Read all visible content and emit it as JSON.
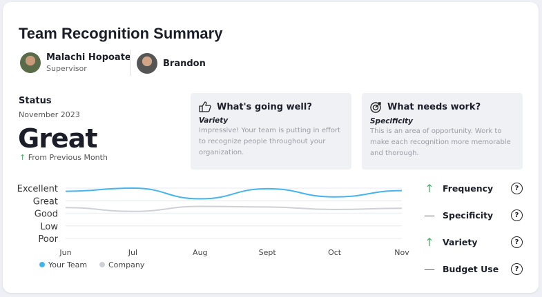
{
  "title": "Team Recognition Summary",
  "people": [
    {
      "name": "Malachi Hopoate",
      "role": "Supervisor"
    },
    {
      "name": "Brandon"
    }
  ],
  "status": {
    "label": "Status",
    "month": "November 2023",
    "value": "Great",
    "change_icon": "arrow-up",
    "change": "From Previous Month"
  },
  "going_well": {
    "title": "What's going well?",
    "icon": "thumbs-up",
    "subtitle": "Variety",
    "text": "Impressive! Your team is putting in effort to recognize people throughout your organization."
  },
  "needs_work": {
    "title": "What needs work?",
    "icon": "target",
    "subtitle": "Specificity",
    "text": "This is an area of opportunity. Work to make each recognition more memorable and thorough."
  },
  "chart_data": {
    "type": "line",
    "categories": [
      "Jun",
      "Jul",
      "Aug",
      "Sept",
      "Oct",
      "Nov"
    ],
    "y_levels": [
      "Poor",
      "Low",
      "Good",
      "Great",
      "Excellent"
    ],
    "ylim": [
      0,
      4
    ],
    "series": [
      {
        "name": "Your Team",
        "color": "#44b4ef",
        "values": [
          3.75,
          4.0,
          3.15,
          3.95,
          3.3,
          3.8
        ]
      },
      {
        "name": "Company",
        "color": "#cfd0d6",
        "values": [
          2.45,
          2.15,
          2.55,
          2.5,
          2.3,
          2.4
        ]
      }
    ],
    "legend": "bottom-left"
  },
  "metrics": [
    {
      "label": "Frequency",
      "trend": "up"
    },
    {
      "label": "Specificity",
      "trend": "flat"
    },
    {
      "label": "Variety",
      "trend": "up"
    },
    {
      "label": "Budget Use",
      "trend": "flat"
    }
  ]
}
